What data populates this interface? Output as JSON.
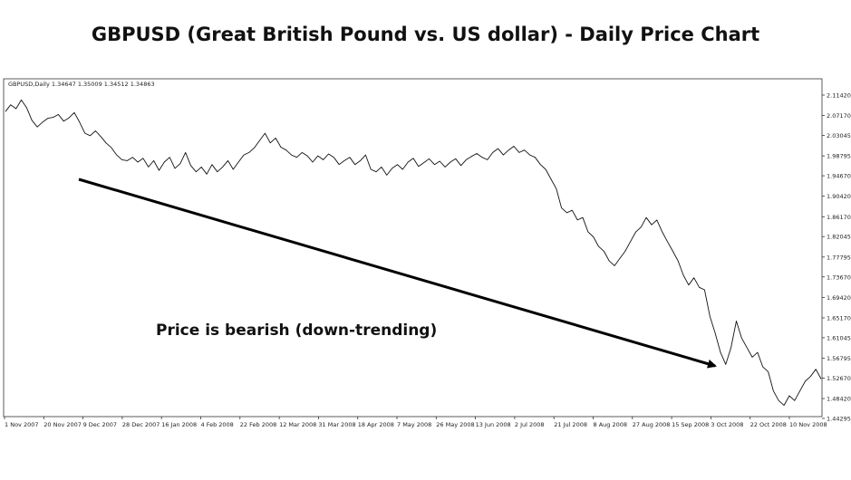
{
  "title": "GBPUSD (Great British Pound vs. US dollar) - Daily Price Chart",
  "chart_data": {
    "type": "line",
    "symbol_info": "GBPUSD,Daily  1.34647 1.35009 1.34512 1.34863",
    "x_tick_labels": [
      "1 Nov 2007",
      "20 Nov 2007",
      "9 Dec 2007",
      "28 Dec 2007",
      "16 Jan 2008",
      "4 Feb 2008",
      "22 Feb 2008",
      "12 Mar 2008",
      "31 Mar 2008",
      "18 Apr 2008",
      "7 May 2008",
      "26 May 2008",
      "13 Jun 2008",
      "2 Jul 2008",
      "21 Jul 2008",
      "8 Aug 2008",
      "27 Aug 2008",
      "15 Sep 2008",
      "3 Oct 2008",
      "22 Oct 2008",
      "10 Nov 2008"
    ],
    "y_tick_labels": [
      "2.11420",
      "2.07170",
      "2.03045",
      "1.98795",
      "1.94670",
      "1.90420",
      "1.86170",
      "1.82045",
      "1.77795",
      "1.73670",
      "1.69420",
      "1.65170",
      "1.61045",
      "1.56795",
      "1.52670",
      "1.48420",
      "1.44295"
    ],
    "ylim": [
      1.44295,
      2.1142
    ],
    "grid": false,
    "series": [
      {
        "values": [
          2.08,
          2.094,
          2.086,
          2.104,
          2.088,
          2.062,
          2.048,
          2.058,
          2.066,
          2.068,
          2.074,
          2.06,
          2.067,
          2.078,
          2.058,
          2.035,
          2.03,
          2.04,
          2.028,
          2.015,
          2.005,
          1.99,
          1.98,
          1.978,
          1.985,
          1.975,
          1.983,
          1.965,
          1.978,
          1.958,
          1.975,
          1.985,
          1.962,
          1.972,
          1.995,
          1.968,
          1.955,
          1.965,
          1.95,
          1.97,
          1.955,
          1.965,
          1.978,
          1.96,
          1.975,
          1.99,
          1.995,
          2.005,
          2.02,
          2.035,
          2.015,
          2.025,
          2.006,
          2.0,
          1.99,
          1.985,
          1.995,
          1.988,
          1.975,
          1.988,
          1.98,
          1.992,
          1.985,
          1.97,
          1.978,
          1.985,
          1.97,
          1.978,
          1.99,
          1.96,
          1.955,
          1.965,
          1.948,
          1.962,
          1.97,
          1.96,
          1.975,
          1.983,
          1.966,
          1.974,
          1.982,
          1.97,
          1.977,
          1.965,
          1.975,
          1.982,
          1.968,
          1.98,
          1.987,
          1.993,
          1.985,
          1.98,
          1.995,
          2.003,
          1.99,
          2.0,
          2.008,
          1.995,
          2.0,
          1.99,
          1.985,
          1.97,
          1.96,
          1.94,
          1.92,
          1.88,
          1.87,
          1.875,
          1.855,
          1.86,
          1.83,
          1.82,
          1.8,
          1.79,
          1.77,
          1.76,
          1.775,
          1.79,
          1.81,
          1.83,
          1.84,
          1.86,
          1.845,
          1.855,
          1.83,
          1.81,
          1.79,
          1.77,
          1.74,
          1.72,
          1.735,
          1.715,
          1.71,
          1.655,
          1.62,
          1.58,
          1.555,
          1.59,
          1.645,
          1.61,
          1.59,
          1.57,
          1.58,
          1.55,
          1.54,
          1.5,
          1.48,
          1.47,
          1.49,
          1.48,
          1.5,
          1.52,
          1.53,
          1.545,
          1.525
        ]
      }
    ],
    "annotation": {
      "text": "Price is bearish (down-trending)",
      "arrow": "trend line with arrowhead pointing down-right"
    }
  }
}
